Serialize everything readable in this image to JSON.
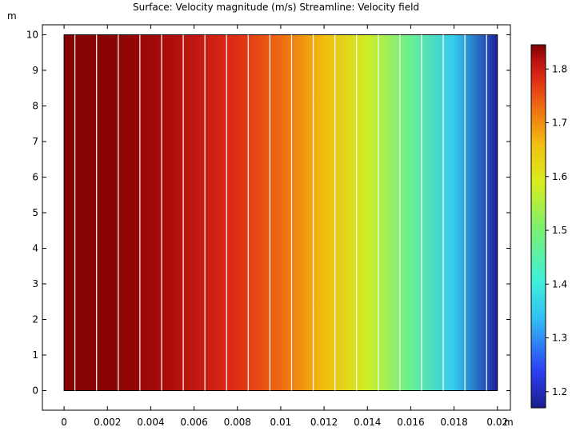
{
  "chart_data": {
    "type": "heatmap",
    "title": "Surface: Velocity magnitude (m/s)  Streamline: Velocity field",
    "x_unit": "m",
    "y_unit": "m",
    "xlim": [
      -0.001,
      0.0206
    ],
    "ylim": [
      -0.55,
      10.28
    ],
    "domain": {
      "x": [
        0,
        0.02
      ],
      "y": [
        0,
        10
      ]
    },
    "x_ticks": [
      0,
      0.002,
      0.004,
      0.006,
      0.008,
      0.01,
      0.012,
      0.014,
      0.016,
      0.018,
      0.02
    ],
    "x_tick_labels": [
      "0",
      "0.002",
      "0.004",
      "0.006",
      "0.008",
      "0.01",
      "0.012",
      "0.014",
      "0.016",
      "0.018",
      "0.02"
    ],
    "y_ticks": [
      0,
      1,
      2,
      3,
      4,
      5,
      6,
      7,
      8,
      9,
      10
    ],
    "y_tick_labels": [
      "0",
      "1",
      "2",
      "3",
      "4",
      "5",
      "6",
      "7",
      "8",
      "9",
      "10"
    ],
    "surface_profile": {
      "description": "velocity magnitude varies with x only",
      "x": [
        0,
        0.002,
        0.004,
        0.006,
        0.008,
        0.01,
        0.012,
        0.014,
        0.016,
        0.018,
        0.02
      ],
      "velocity": [
        1.84,
        1.84,
        1.83,
        1.81,
        1.78,
        1.73,
        1.66,
        1.58,
        1.47,
        1.35,
        1.18
      ]
    },
    "streamlines_x": [
      0.0005,
      0.0015,
      0.0025,
      0.0035,
      0.0045,
      0.0055,
      0.0065,
      0.0075,
      0.0085,
      0.0095,
      0.0105,
      0.0115,
      0.0125,
      0.0135,
      0.0145,
      0.0155,
      0.0165,
      0.0175,
      0.0185,
      0.0195
    ],
    "colorbar": {
      "min": 1.17,
      "max": 1.845,
      "ticks": [
        1.2,
        1.3,
        1.4,
        1.5,
        1.6,
        1.7,
        1.8
      ],
      "tick_labels": [
        "1.2",
        "1.3",
        "1.4",
        "1.5",
        "1.6",
        "1.7",
        "1.8"
      ],
      "colormap": "rainbow"
    },
    "grid": false,
    "legend": "colorbar-right"
  }
}
